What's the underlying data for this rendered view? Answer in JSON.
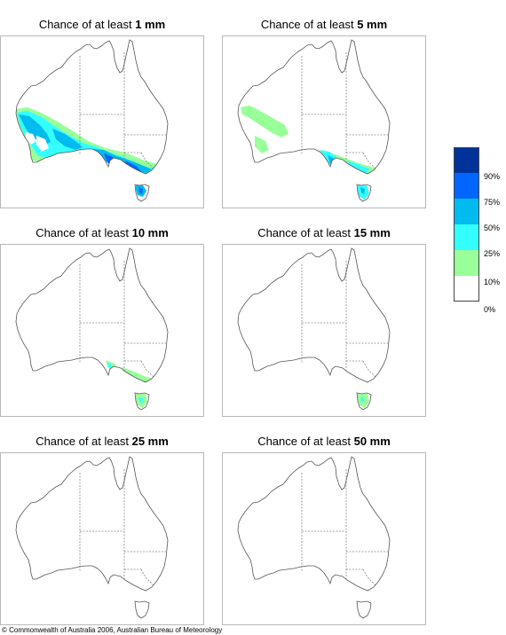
{
  "panels": [
    {
      "prefix": "Chance of at least ",
      "amount": "1 mm",
      "level": 0
    },
    {
      "prefix": "Chance of at least ",
      "amount": "5 mm",
      "level": 1
    },
    {
      "prefix": "Chance of at least ",
      "amount": "10 mm",
      "level": 2
    },
    {
      "prefix": "Chance of at least ",
      "amount": "15 mm",
      "level": 3
    },
    {
      "prefix": "Chance of at least ",
      "amount": "25 mm",
      "level": 4
    },
    {
      "prefix": "Chance of at least ",
      "amount": "50 mm",
      "level": 5
    }
  ],
  "legend": {
    "colors": [
      "#003399",
      "#0066ff",
      "#00bbee",
      "#33ffff",
      "#99ff99",
      "#ffffff"
    ],
    "labels": [
      "90%",
      "75%",
      "50%",
      "25%",
      "10%",
      "0%"
    ]
  },
  "copyright": "© Commonwealth of Australia 2006, Australian Bureau of Meteorology",
  "map_colors": {
    "coast": "#555555",
    "borders": "#888888"
  }
}
